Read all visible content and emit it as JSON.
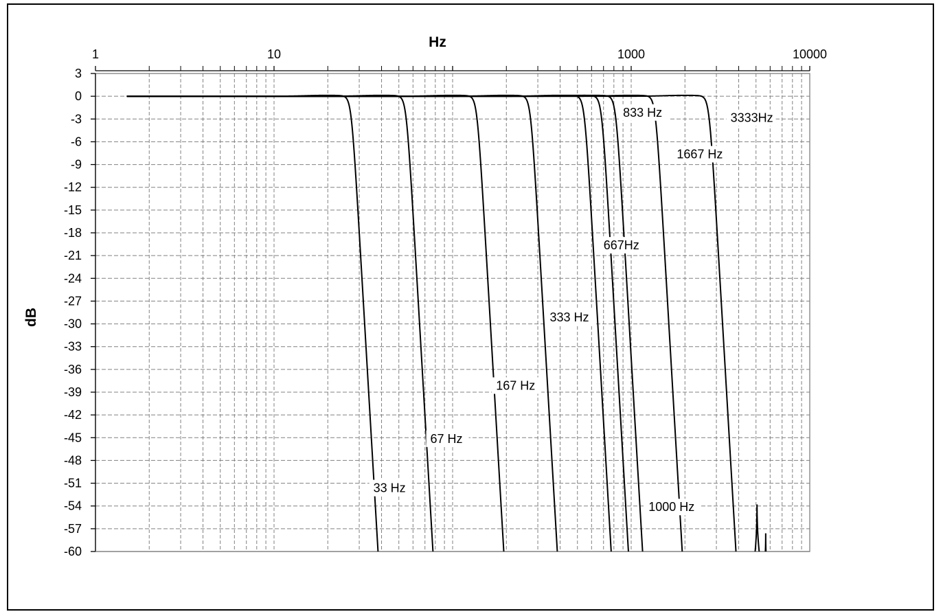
{
  "chart_data": {
    "type": "line",
    "xlabel": "Hz",
    "ylabel": "dB",
    "x_scale": "log",
    "xlim": [
      1,
      10000
    ],
    "ylim": [
      -60,
      3
    ],
    "x_ticks": [
      "1",
      "10",
      "1000",
      "10000"
    ],
    "x_tick_values": [
      1,
      10,
      1000,
      10000
    ],
    "y_ticks": [
      "3",
      "0",
      "-3",
      "-6",
      "-9",
      "-12",
      "-15",
      "-18",
      "-21",
      "-24",
      "-27",
      "-30",
      "-33",
      "-36",
      "-39",
      "-42",
      "-45",
      "-48",
      "-51",
      "-54",
      "-57",
      "-60"
    ],
    "y_tick_values": [
      3,
      0,
      -3,
      -6,
      -9,
      -12,
      -15,
      -18,
      -21,
      -24,
      -27,
      -30,
      -33,
      -36,
      -39,
      -42,
      -45,
      -48,
      -51,
      -54,
      -57,
      -60
    ],
    "grid": true,
    "line_color": "#000000",
    "grid_color": "#808080",
    "series": [
      {
        "name": "33 Hz",
        "cutoff": 33,
        "label_x": 36,
        "label_y": -52
      },
      {
        "name": "67 Hz",
        "cutoff": 67,
        "label_x": 75,
        "label_y": -45.5
      },
      {
        "name": "167 Hz",
        "cutoff": 167,
        "label_x": 175,
        "label_y": -38.5
      },
      {
        "name": "333 Hz",
        "cutoff": 333,
        "label_x": 350,
        "label_y": -29.5
      },
      {
        "name": "667Hz",
        "cutoff": 667,
        "label_x": 700,
        "label_y": -20
      },
      {
        "name": "833 Hz",
        "cutoff": 833,
        "label_x": 900,
        "label_y": -2.5
      },
      {
        "name": "1000 Hz",
        "cutoff": 1000,
        "label_x": 1250,
        "label_y": -54.5
      },
      {
        "name": "1667 Hz",
        "cutoff": 1667,
        "label_x": 1800,
        "label_y": -8
      },
      {
        "name": "3333Hz",
        "cutoff": 3333,
        "label_x": 3600,
        "label_y": -3.2
      }
    ]
  }
}
